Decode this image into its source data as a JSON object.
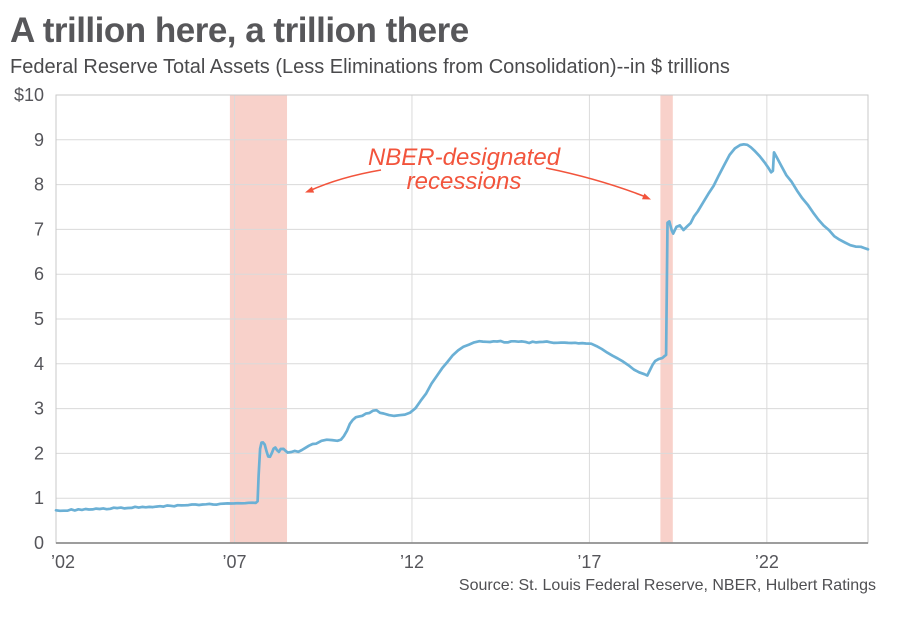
{
  "header": {
    "title": "A trillion here, a trillion there",
    "subtitle": "Federal Reserve Total Assets (Less Eliminations from Consolidation)--in $ trillions"
  },
  "source": "Source: St. Louis Federal Reserve, NBER, Hulbert Ratings",
  "annotation": {
    "line1": "NBER-designated",
    "line2": "recessions"
  },
  "chart_data": {
    "type": "line",
    "title": "Federal Reserve Total Assets (Less Eliminations from Consolidation) in $ trillions",
    "xlabel": "",
    "ylabel": "$ trillions",
    "xlim": [
      2001.97,
      2024.85
    ],
    "ylim": [
      0,
      10
    ],
    "grid": true,
    "legend": "none",
    "x_ticks": [
      {
        "year": 2002,
        "label": "’02"
      },
      {
        "year": 2007,
        "label": "’07"
      },
      {
        "year": 2012,
        "label": "’12"
      },
      {
        "year": 2017,
        "label": "’17"
      },
      {
        "year": 2022,
        "label": "’22"
      }
    ],
    "y_ticks": [
      {
        "value": 10,
        "label": "$10"
      },
      {
        "value": 9,
        "label": "9"
      },
      {
        "value": 8,
        "label": "8"
      },
      {
        "value": 7,
        "label": "7"
      },
      {
        "value": 6,
        "label": "6"
      },
      {
        "value": 5,
        "label": "5"
      },
      {
        "value": 4,
        "label": "4"
      },
      {
        "value": 3,
        "label": "3"
      },
      {
        "value": 2,
        "label": "2"
      },
      {
        "value": 1,
        "label": "1"
      },
      {
        "value": 0,
        "label": "0"
      }
    ],
    "recessions": [
      {
        "from": 2006.87,
        "to": 2008.48
      },
      {
        "from": 2019.0,
        "to": 2019.35
      }
    ],
    "series": [
      {
        "name": "Fed total assets ($ trillions)",
        "points": [
          [
            2001.97,
            0.73
          ],
          [
            2002.3,
            0.735
          ],
          [
            2002.6,
            0.74
          ],
          [
            2002.9,
            0.75
          ],
          [
            2003.2,
            0.76
          ],
          [
            2003.5,
            0.77
          ],
          [
            2003.8,
            0.78
          ],
          [
            2004.1,
            0.79
          ],
          [
            2004.4,
            0.8
          ],
          [
            2004.7,
            0.81
          ],
          [
            2005.0,
            0.82
          ],
          [
            2005.3,
            0.83
          ],
          [
            2005.6,
            0.84
          ],
          [
            2005.9,
            0.85
          ],
          [
            2006.2,
            0.86
          ],
          [
            2006.5,
            0.87
          ],
          [
            2006.8,
            0.88
          ],
          [
            2007.1,
            0.89
          ],
          [
            2007.4,
            0.9
          ],
          [
            2007.6,
            0.9
          ],
          [
            2007.65,
            0.92
          ],
          [
            2007.68,
            1.5
          ],
          [
            2007.72,
            2.1
          ],
          [
            2007.76,
            2.24
          ],
          [
            2007.8,
            2.25
          ],
          [
            2007.85,
            2.2
          ],
          [
            2007.9,
            2.05
          ],
          [
            2007.95,
            1.93
          ],
          [
            2008.0,
            1.92
          ],
          [
            2008.05,
            2.0
          ],
          [
            2008.1,
            2.1
          ],
          [
            2008.15,
            2.14
          ],
          [
            2008.2,
            2.08
          ],
          [
            2008.25,
            2.04
          ],
          [
            2008.3,
            2.1
          ],
          [
            2008.38,
            2.1
          ],
          [
            2008.45,
            2.05
          ],
          [
            2008.5,
            2.02
          ],
          [
            2008.6,
            2.03
          ],
          [
            2008.7,
            2.06
          ],
          [
            2008.8,
            2.05
          ],
          [
            2008.9,
            2.08
          ],
          [
            2009.0,
            2.12
          ],
          [
            2009.1,
            2.16
          ],
          [
            2009.2,
            2.2
          ],
          [
            2009.3,
            2.23
          ],
          [
            2009.45,
            2.27
          ],
          [
            2009.6,
            2.3
          ],
          [
            2009.75,
            2.29
          ],
          [
            2009.9,
            2.27
          ],
          [
            2010.0,
            2.3
          ],
          [
            2010.08,
            2.38
          ],
          [
            2010.17,
            2.52
          ],
          [
            2010.25,
            2.65
          ],
          [
            2010.33,
            2.75
          ],
          [
            2010.42,
            2.8
          ],
          [
            2010.5,
            2.83
          ],
          [
            2010.6,
            2.85
          ],
          [
            2010.7,
            2.88
          ],
          [
            2010.8,
            2.9
          ],
          [
            2010.9,
            2.94
          ],
          [
            2011.0,
            2.97
          ],
          [
            2011.1,
            2.92
          ],
          [
            2011.2,
            2.88
          ],
          [
            2011.35,
            2.86
          ],
          [
            2011.5,
            2.85
          ],
          [
            2011.65,
            2.86
          ],
          [
            2011.8,
            2.88
          ],
          [
            2011.95,
            2.9
          ],
          [
            2012.1,
            3.0
          ],
          [
            2012.25,
            3.18
          ],
          [
            2012.4,
            3.35
          ],
          [
            2012.55,
            3.55
          ],
          [
            2012.7,
            3.72
          ],
          [
            2012.85,
            3.9
          ],
          [
            2013.0,
            4.05
          ],
          [
            2013.15,
            4.18
          ],
          [
            2013.3,
            4.3
          ],
          [
            2013.45,
            4.38
          ],
          [
            2013.6,
            4.44
          ],
          [
            2013.75,
            4.47
          ],
          [
            2013.9,
            4.49
          ],
          [
            2014.1,
            4.5
          ],
          [
            2014.3,
            4.49
          ],
          [
            2014.5,
            4.5
          ],
          [
            2014.7,
            4.48
          ],
          [
            2014.9,
            4.5
          ],
          [
            2015.1,
            4.49
          ],
          [
            2015.3,
            4.47
          ],
          [
            2015.5,
            4.49
          ],
          [
            2015.7,
            4.48
          ],
          [
            2015.9,
            4.49
          ],
          [
            2016.1,
            4.47
          ],
          [
            2016.3,
            4.48
          ],
          [
            2016.5,
            4.46
          ],
          [
            2016.7,
            4.47
          ],
          [
            2016.9,
            4.46
          ],
          [
            2017.05,
            4.45
          ],
          [
            2017.2,
            4.4
          ],
          [
            2017.35,
            4.33
          ],
          [
            2017.5,
            4.26
          ],
          [
            2017.65,
            4.18
          ],
          [
            2017.8,
            4.12
          ],
          [
            2017.95,
            4.05
          ],
          [
            2018.1,
            3.97
          ],
          [
            2018.25,
            3.88
          ],
          [
            2018.4,
            3.82
          ],
          [
            2018.55,
            3.77
          ],
          [
            2018.63,
            3.75
          ],
          [
            2018.7,
            3.85
          ],
          [
            2018.78,
            3.98
          ],
          [
            2018.85,
            4.06
          ],
          [
            2018.95,
            4.1
          ],
          [
            2019.05,
            4.14
          ],
          [
            2019.13,
            4.17
          ],
          [
            2019.16,
            4.2
          ],
          [
            2019.2,
            7.15
          ],
          [
            2019.25,
            7.17
          ],
          [
            2019.32,
            6.98
          ],
          [
            2019.36,
            6.9
          ],
          [
            2019.45,
            7.05
          ],
          [
            2019.55,
            7.08
          ],
          [
            2019.65,
            7.0
          ],
          [
            2019.75,
            7.07
          ],
          [
            2019.85,
            7.15
          ],
          [
            2019.95,
            7.28
          ],
          [
            2020.05,
            7.4
          ],
          [
            2020.2,
            7.6
          ],
          [
            2020.35,
            7.78
          ],
          [
            2020.5,
            7.98
          ],
          [
            2020.65,
            8.2
          ],
          [
            2020.8,
            8.45
          ],
          [
            2020.95,
            8.65
          ],
          [
            2021.1,
            8.8
          ],
          [
            2021.25,
            8.88
          ],
          [
            2021.35,
            8.9
          ],
          [
            2021.45,
            8.88
          ],
          [
            2021.55,
            8.83
          ],
          [
            2021.65,
            8.76
          ],
          [
            2021.8,
            8.62
          ],
          [
            2021.95,
            8.48
          ],
          [
            2022.05,
            8.36
          ],
          [
            2022.12,
            8.28
          ],
          [
            2022.17,
            8.3
          ],
          [
            2022.2,
            8.72
          ],
          [
            2022.28,
            8.6
          ],
          [
            2022.4,
            8.42
          ],
          [
            2022.55,
            8.22
          ],
          [
            2022.7,
            8.05
          ],
          [
            2022.85,
            7.88
          ],
          [
            2023.0,
            7.7
          ],
          [
            2023.15,
            7.55
          ],
          [
            2023.3,
            7.38
          ],
          [
            2023.45,
            7.22
          ],
          [
            2023.6,
            7.1
          ],
          [
            2023.75,
            6.98
          ],
          [
            2023.9,
            6.86
          ],
          [
            2024.05,
            6.78
          ],
          [
            2024.2,
            6.71
          ],
          [
            2024.35,
            6.66
          ],
          [
            2024.5,
            6.62
          ],
          [
            2024.65,
            6.6
          ],
          [
            2024.85,
            6.57
          ]
        ]
      }
    ],
    "colors": {
      "line": "#6bb0d5",
      "recession_band": "#f8d1ca",
      "annotation": "#f2543c",
      "grid": "#dadada",
      "border": "#c9c9c9",
      "axis": "#8f8f8f",
      "tick_text": "#55555a"
    }
  }
}
